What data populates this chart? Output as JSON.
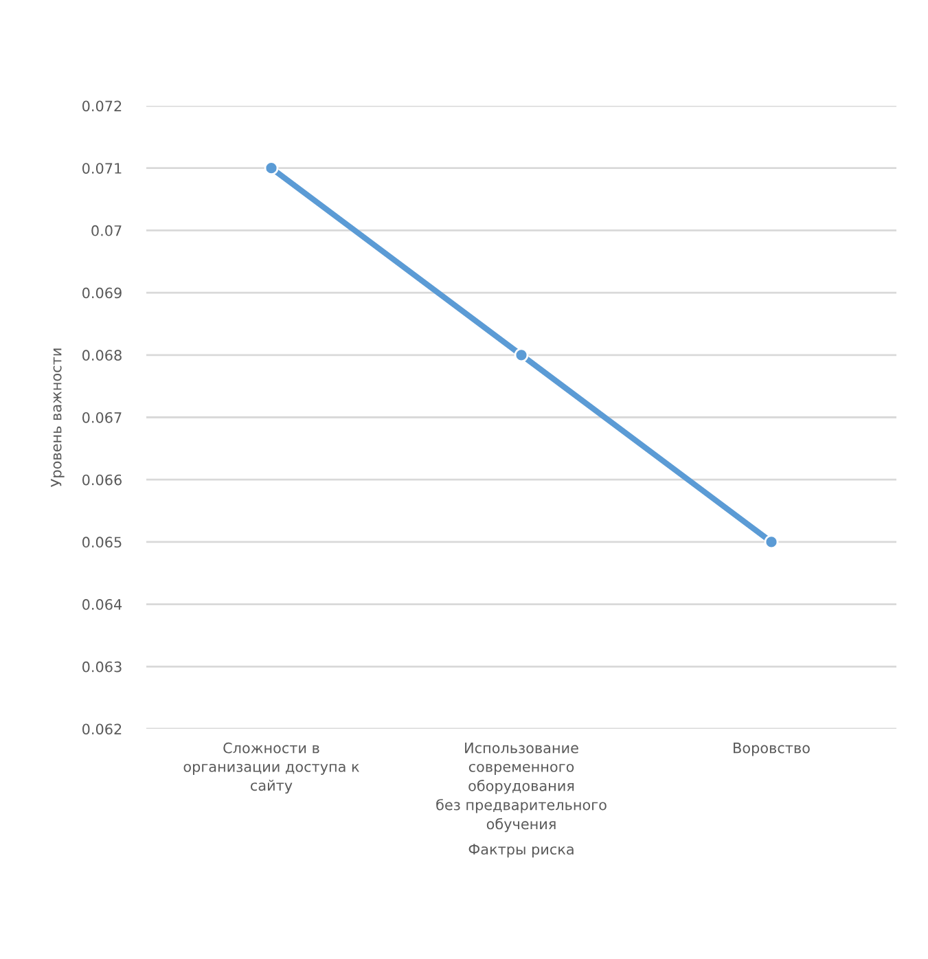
{
  "chart_data": {
    "type": "line",
    "xlabel": "Фактры риска",
    "ylabel": "Уровень важности",
    "categories": [
      "Сложности в\nорганизации доступа к\nсайту",
      "Использование\nсовременного\nоборудования\nбез предварительного\nобучения",
      "Воровство"
    ],
    "series": [
      {
        "color": "#5b9bd5",
        "values": [
          0.071,
          0.068,
          0.065
        ]
      }
    ],
    "ylim": [
      0.062,
      0.072
    ],
    "yticks": [
      0.062,
      0.063,
      0.064,
      0.065,
      0.066,
      0.067,
      0.068,
      0.069,
      0.07,
      0.071,
      0.072
    ],
    "grid": "y",
    "marker": "circle",
    "line_style": "solid",
    "legend": false
  }
}
